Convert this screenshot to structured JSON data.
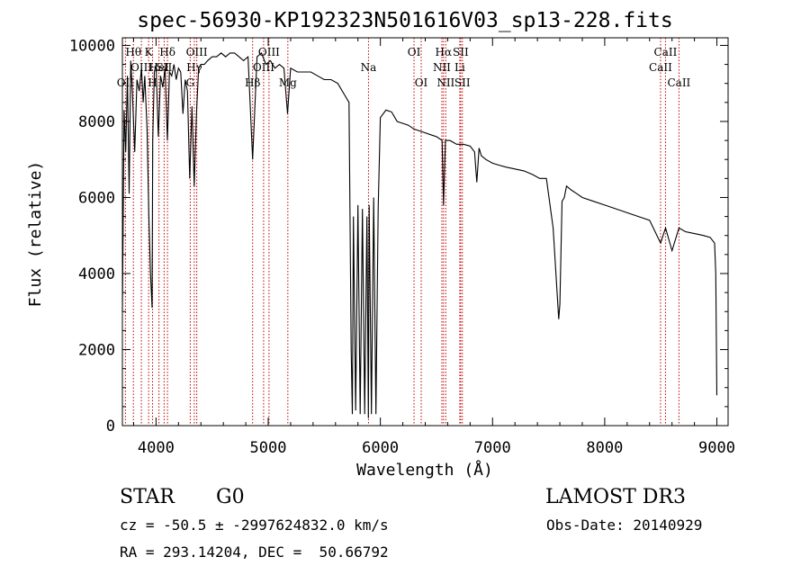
{
  "chart_data": {
    "type": "line",
    "title": "spec-56930-KP192323N501616V03_sp13-228.fits",
    "xlabel": "Wavelength (Å)",
    "ylabel": "Flux (relative)",
    "xlim": [
      3700,
      9100
    ],
    "ylim": [
      0,
      10200
    ],
    "xticks": [
      4000,
      5000,
      6000,
      7000,
      8000,
      9000
    ],
    "yticks": [
      0,
      2000,
      4000,
      6000,
      8000,
      10000
    ],
    "line_color": "#000000",
    "marker_color": "#c00000",
    "series": [
      {
        "x": [
          3700,
          3715,
          3730,
          3745,
          3760,
          3775,
          3790,
          3810,
          3830,
          3850,
          3870,
          3885,
          3900,
          3920,
          3935,
          3950,
          3965,
          3970,
          3985,
          4000,
          4020,
          4040,
          4060,
          4080,
          4101,
          4120,
          4140,
          4160,
          4180,
          4200,
          4220,
          4240,
          4260,
          4280,
          4300,
          4320,
          4340,
          4360,
          4380,
          4400,
          4430,
          4460,
          4500,
          4540,
          4580,
          4620,
          4660,
          4700,
          4740,
          4780,
          4820,
          4861,
          4900,
          4940,
          4980,
          5020,
          5060,
          5100,
          5140,
          5172,
          5200,
          5260,
          5320,
          5380,
          5440,
          5500,
          5560,
          5620,
          5680,
          5720,
          5740,
          5750,
          5760,
          5780,
          5800,
          5820,
          5840,
          5860,
          5880,
          5893,
          5900,
          5920,
          5940,
          5960,
          5980,
          6000,
          6050,
          6100,
          6150,
          6200,
          6250,
          6300,
          6350,
          6400,
          6450,
          6500,
          6550,
          6563,
          6580,
          6620,
          6680,
          6740,
          6800,
          6840,
          6860,
          6880,
          6900,
          6940,
          7000,
          7060,
          7120,
          7200,
          7280,
          7360,
          7420,
          7480,
          7540,
          7590,
          7600,
          7620,
          7640,
          7660,
          7700,
          7750,
          7800,
          7900,
          8000,
          8100,
          8200,
          8300,
          8400,
          8498,
          8542,
          8600,
          8662,
          8720,
          8800,
          8880,
          8940,
          8980,
          8990,
          9000
        ],
        "y": [
          3000,
          8300,
          7200,
          9200,
          6100,
          9600,
          8700,
          7200,
          9100,
          8800,
          9400,
          8500,
          9200,
          7800,
          5600,
          4000,
          3100,
          7500,
          9300,
          9500,
          7600,
          9200,
          8900,
          9400,
          7500,
          9300,
          9200,
          9500,
          9100,
          9400,
          9300,
          8200,
          9100,
          8800,
          6500,
          8400,
          6300,
          8200,
          9400,
          9500,
          9500,
          9600,
          9700,
          9700,
          9800,
          9700,
          9800,
          9800,
          9700,
          9600,
          9700,
          7000,
          9700,
          9800,
          9500,
          9600,
          9400,
          9500,
          9400,
          8200,
          9400,
          9300,
          9300,
          9300,
          9200,
          9100,
          9100,
          9000,
          8700,
          8500,
          2000,
          300,
          5500,
          400,
          5800,
          300,
          5700,
          300,
          5500,
          200,
          5800,
          300,
          6000,
          300,
          5700,
          8100,
          8300,
          8250,
          8000,
          7950,
          7900,
          7800,
          7750,
          7700,
          7650,
          7600,
          7500,
          5800,
          7500,
          7500,
          7400,
          7400,
          7350,
          7200,
          6400,
          7300,
          7100,
          7000,
          6900,
          6850,
          6800,
          6750,
          6700,
          6600,
          6500,
          6500,
          5200,
          2800,
          3200,
          5900,
          6000,
          6300,
          6200,
          6100,
          6000,
          5900,
          5800,
          5700,
          5600,
          5500,
          5400,
          4800,
          5200,
          4600,
          5200,
          5100,
          5050,
          5000,
          4950,
          4800,
          4000,
          800
        ]
      }
    ],
    "lines": [
      {
        "label": "OII",
        "wavelength": 3727,
        "row": 3
      },
      {
        "label": "Hθ",
        "wavelength": 3798,
        "row": 1
      },
      {
        "label": "OIII",
        "wavelength": 3869,
        "row": 2
      },
      {
        "label": "K",
        "wavelength": 3934,
        "row": 1
      },
      {
        "label": "H",
        "wavelength": 3969,
        "row": 3
      },
      {
        "label": "HeI",
        "wavelength": 4026,
        "row": 2
      },
      {
        "label": "Hδ",
        "wavelength": 4102,
        "row": 1
      },
      {
        "label": "SII",
        "wavelength": 4072,
        "row": 2
      },
      {
        "label": "G",
        "wavelength": 4305,
        "row": 3
      },
      {
        "label": "Hγ",
        "wavelength": 4341,
        "row": 2
      },
      {
        "label": "OIII",
        "wavelength": 4363,
        "row": 1
      },
      {
        "label": "Hβ",
        "wavelength": 4861,
        "row": 3
      },
      {
        "label": "OIII",
        "wavelength": 4959,
        "row": 2
      },
      {
        "label": "OIII",
        "wavelength": 5007,
        "row": 1
      },
      {
        "label": "Mg",
        "wavelength": 5175,
        "row": 3
      },
      {
        "label": "Na",
        "wavelength": 5894,
        "row": 2
      },
      {
        "label": "OI",
        "wavelength": 6300,
        "row": 1
      },
      {
        "label": "OI",
        "wavelength": 6364,
        "row": 3
      },
      {
        "label": "NII",
        "wavelength": 6548,
        "row": 2
      },
      {
        "label": "Hα",
        "wavelength": 6563,
        "row": 1
      },
      {
        "label": "NII",
        "wavelength": 6583,
        "row": 3
      },
      {
        "label": "SII",
        "wavelength": 6716,
        "row": 1
      },
      {
        "label": "Li",
        "wavelength": 6708,
        "row": 2
      },
      {
        "label": "SII",
        "wavelength": 6731,
        "row": 3
      },
      {
        "label": "CaII",
        "wavelength": 8498,
        "row": 2
      },
      {
        "label": "CaII",
        "wavelength": 8542,
        "row": 1
      },
      {
        "label": "CaII",
        "wavelength": 8662,
        "row": 3
      }
    ]
  },
  "info": {
    "object_class": "STAR",
    "subclass": "G0",
    "survey": "LAMOST DR3",
    "redshift_line": "cz = -50.5 ± -2997624832.0 km/s",
    "obs_date": "Obs-Date: 20140929",
    "coords": "RA = 293.14204, DEC =  50.66792"
  }
}
